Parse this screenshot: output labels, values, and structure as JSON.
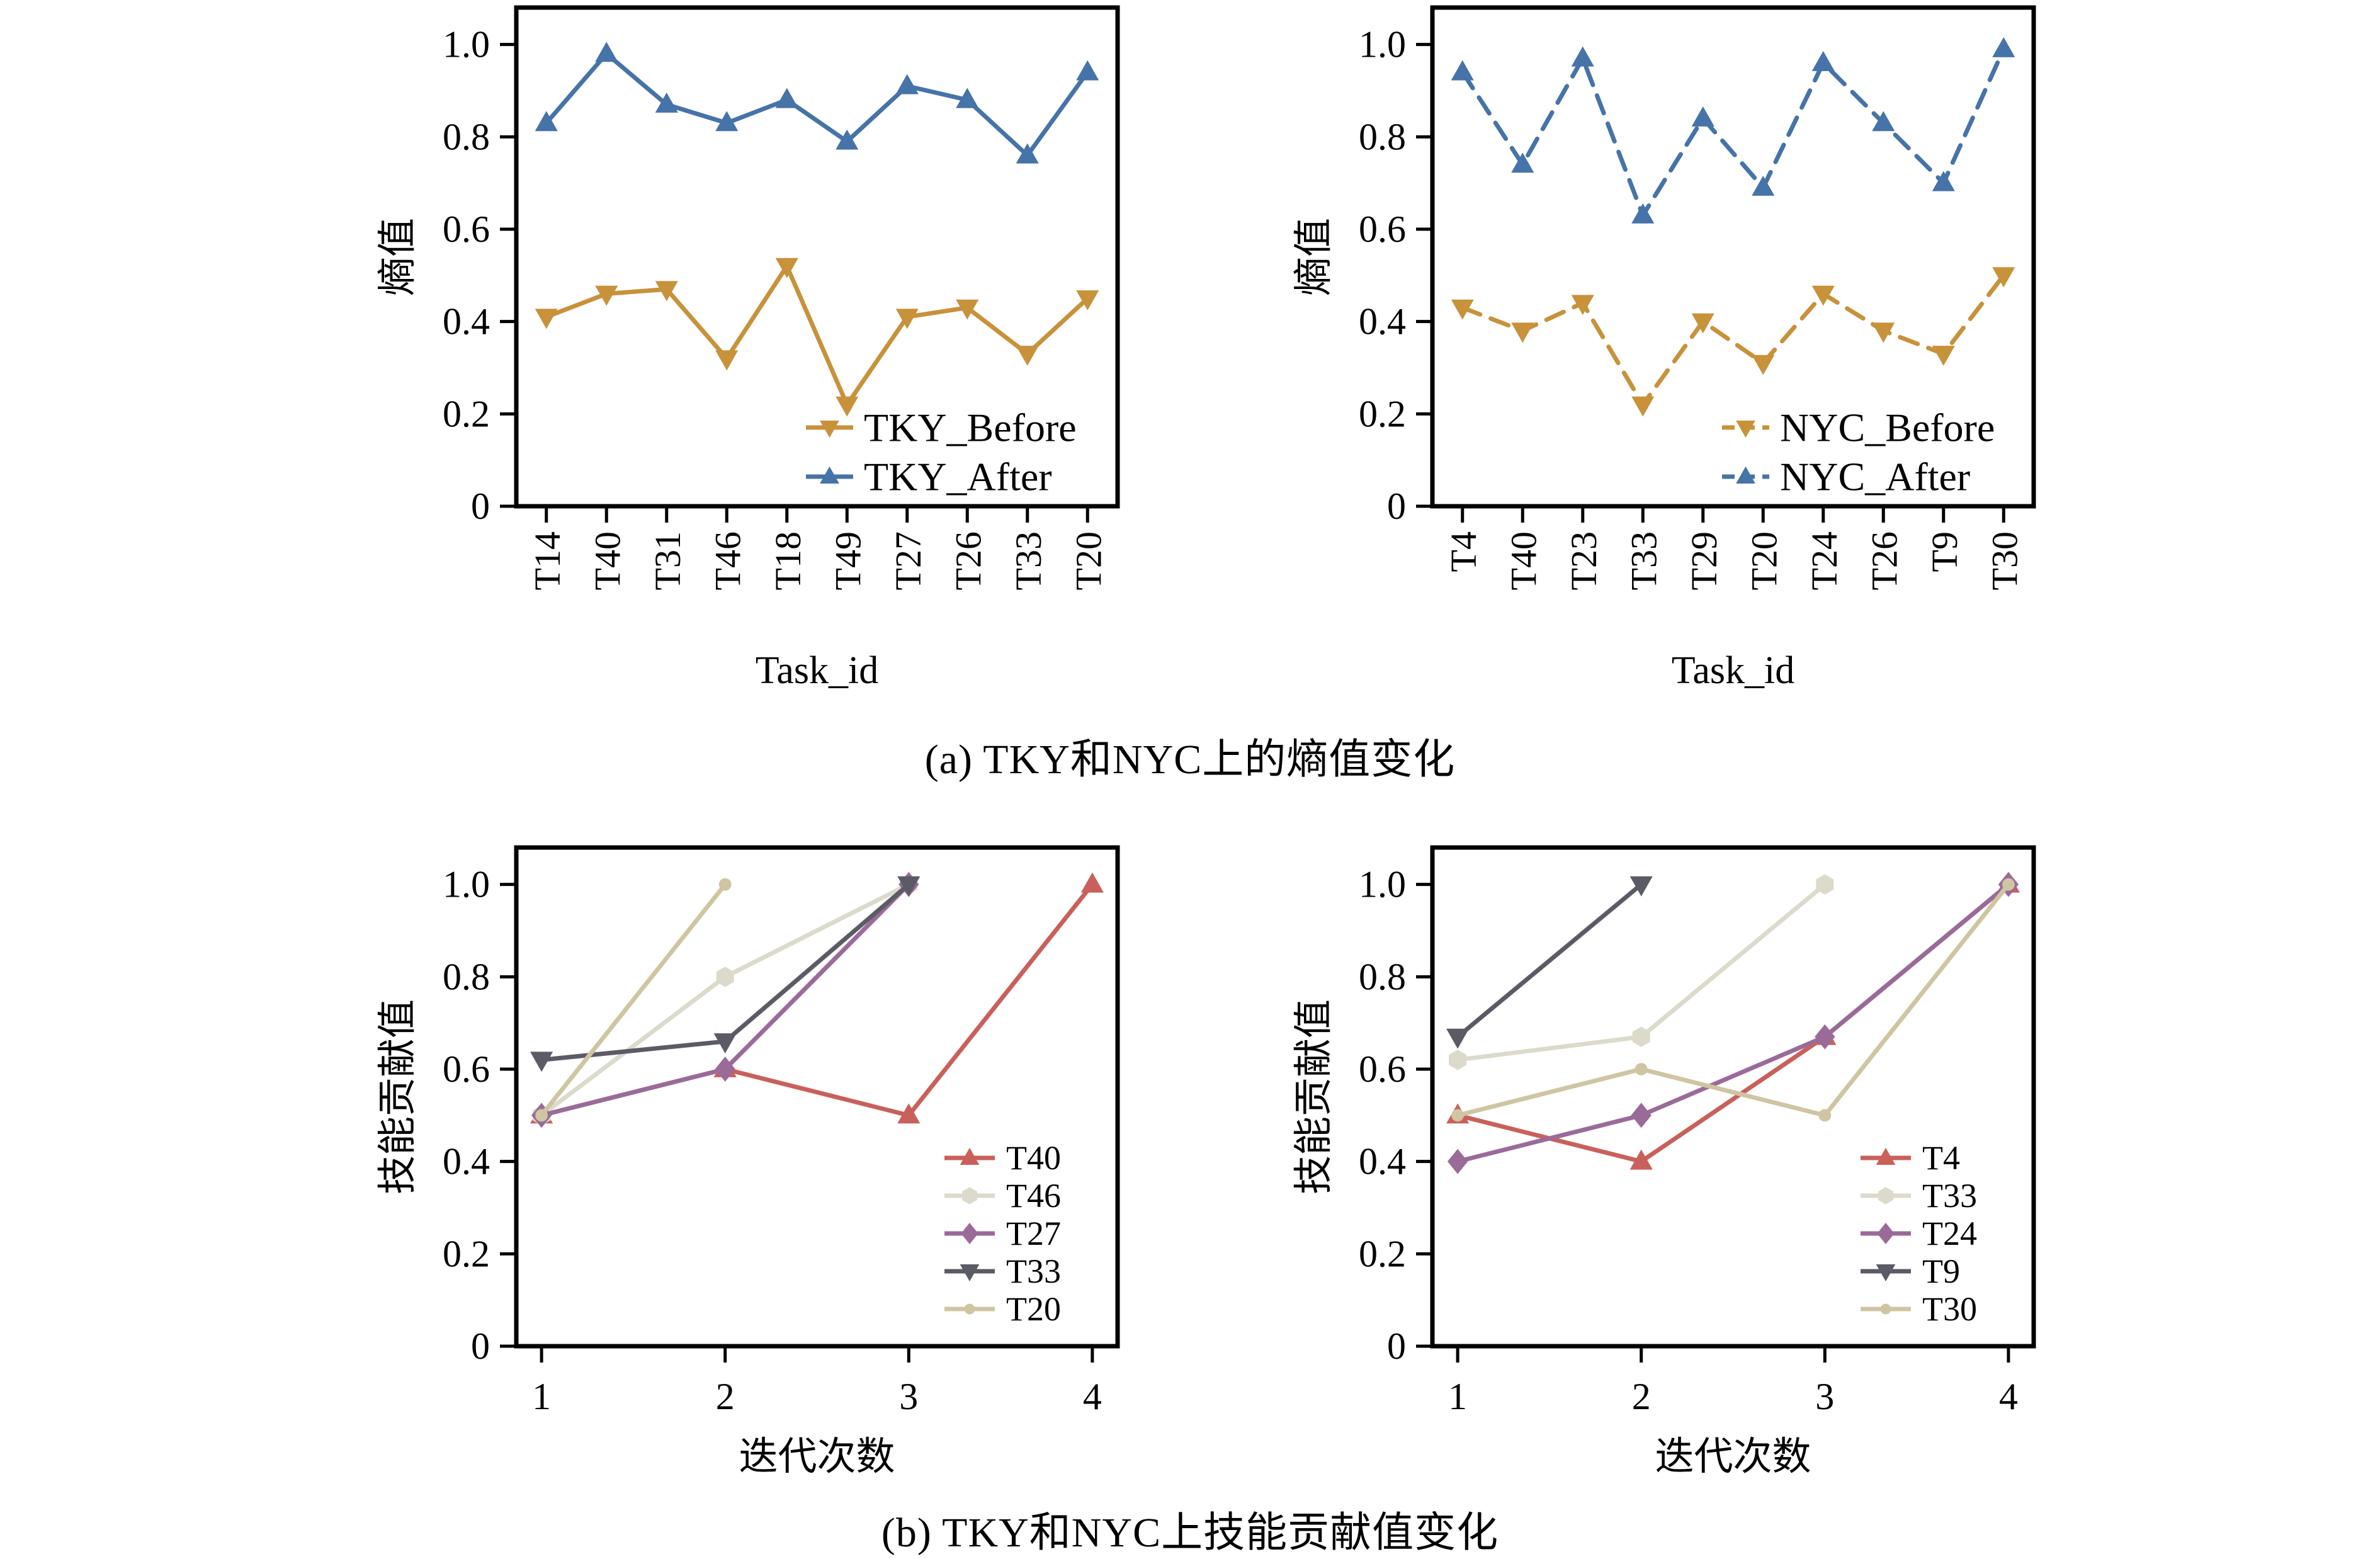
{
  "figure": {
    "caption_a": "(a) TKY和NYC上的熵值变化",
    "caption_b": "(b) TKY和NYC上技能贡献值变化"
  },
  "colors": {
    "gold": "#c8923b",
    "blue": "#4673a8",
    "red": "#c9605b",
    "beige": "#dcdacb",
    "purple": "#9a6b98",
    "slate": "#5b5b66",
    "khaki": "#cfc5a2",
    "axis": "#000000"
  },
  "chart_data": [
    {
      "id": "entropy-tky",
      "type": "line",
      "x_type": "category",
      "title": "",
      "xlabel": "Task_id",
      "ylabel": "熵值",
      "categories": [
        "T14",
        "T40",
        "T31",
        "T46",
        "T18",
        "T49",
        "T27",
        "T26",
        "T33",
        "T20"
      ],
      "ylim": [
        0,
        1.08
      ],
      "yticks": [
        0,
        0.2,
        0.4,
        0.6,
        0.8,
        1.0
      ],
      "ytick_labels": [
        "0",
        "0.2",
        "0.4",
        "0.6",
        "0.8",
        "1.0"
      ],
      "grid": false,
      "legend_position": "lower-right",
      "series": [
        {
          "name": "TKY_Before",
          "color": "gold",
          "marker": "triangle-down",
          "line": "solid",
          "values": [
            0.41,
            0.46,
            0.47,
            0.32,
            0.52,
            0.22,
            0.41,
            0.43,
            0.33,
            0.45
          ]
        },
        {
          "name": "TKY_After",
          "color": "blue",
          "marker": "triangle-up",
          "line": "solid",
          "values": [
            0.83,
            0.98,
            0.87,
            0.83,
            0.88,
            0.79,
            0.91,
            0.88,
            0.76,
            0.94
          ]
        }
      ]
    },
    {
      "id": "entropy-nyc",
      "type": "line",
      "x_type": "category",
      "title": "",
      "xlabel": "Task_id",
      "ylabel": "熵值",
      "categories": [
        "T4",
        "T40",
        "T23",
        "T33",
        "T29",
        "T20",
        "T24",
        "T26",
        "T9",
        "T30"
      ],
      "ylim": [
        0,
        1.08
      ],
      "yticks": [
        0,
        0.2,
        0.4,
        0.6,
        0.8,
        1.0
      ],
      "ytick_labels": [
        "0",
        "0.2",
        "0.4",
        "0.6",
        "0.8",
        "1.0"
      ],
      "grid": false,
      "legend_position": "lower-right",
      "series": [
        {
          "name": "NYC_Before",
          "color": "gold",
          "marker": "triangle-down",
          "line": "dashed",
          "values": [
            0.43,
            0.38,
            0.44,
            0.22,
            0.4,
            0.31,
            0.46,
            0.38,
            0.33,
            0.5
          ]
        },
        {
          "name": "NYC_After",
          "color": "blue",
          "marker": "triangle-up",
          "line": "dashed",
          "values": [
            0.94,
            0.74,
            0.97,
            0.63,
            0.84,
            0.69,
            0.96,
            0.83,
            0.7,
            0.99
          ]
        }
      ]
    },
    {
      "id": "skill-tky",
      "type": "line",
      "x_type": "numeric",
      "title": "",
      "xlabel": "迭代次数",
      "ylabel": "技能贡献值",
      "xticks": [
        1,
        2,
        3,
        4
      ],
      "xtick_labels": [
        "1",
        "2",
        "3",
        "4"
      ],
      "xlim": [
        1,
        4
      ],
      "ylim": [
        0,
        1.08
      ],
      "yticks": [
        0,
        0.2,
        0.4,
        0.6,
        0.8,
        1.0
      ],
      "ytick_labels": [
        "0",
        "0.2",
        "0.4",
        "0.6",
        "0.8",
        "1.0"
      ],
      "grid": false,
      "legend_position": "lower-right",
      "series": [
        {
          "name": "T40",
          "color": "red",
          "marker": "triangle-up",
          "line": "solid",
          "x": [
            1,
            2,
            3,
            4
          ],
          "values": [
            0.5,
            0.6,
            0.5,
            1.0
          ]
        },
        {
          "name": "T46",
          "color": "beige",
          "marker": "hexagon",
          "line": "solid",
          "x": [
            1,
            2,
            3
          ],
          "values": [
            0.5,
            0.8,
            1.0
          ]
        },
        {
          "name": "T27",
          "color": "purple",
          "marker": "diamond",
          "line": "solid",
          "x": [
            1,
            2,
            3
          ],
          "values": [
            0.5,
            0.6,
            1.0
          ]
        },
        {
          "name": "T33",
          "color": "slate",
          "marker": "triangle-down",
          "line": "solid",
          "x": [
            1,
            2,
            3
          ],
          "values": [
            0.62,
            0.66,
            1.0
          ]
        },
        {
          "name": "T20",
          "color": "khaki",
          "marker": "circle",
          "line": "solid",
          "x": [
            1,
            2
          ],
          "values": [
            0.5,
            1.0
          ]
        }
      ]
    },
    {
      "id": "skill-nyc",
      "type": "line",
      "x_type": "numeric",
      "title": "",
      "xlabel": "迭代次数",
      "ylabel": "技能贡献值",
      "xticks": [
        1,
        2,
        3,
        4
      ],
      "xtick_labels": [
        "1",
        "2",
        "3",
        "4"
      ],
      "xlim": [
        1,
        4
      ],
      "ylim": [
        0,
        1.08
      ],
      "yticks": [
        0,
        0.2,
        0.4,
        0.6,
        0.8,
        1.0
      ],
      "ytick_labels": [
        "0",
        "0.2",
        "0.4",
        "0.6",
        "0.8",
        "1.0"
      ],
      "grid": false,
      "legend_position": "lower-right",
      "series": [
        {
          "name": "T4",
          "color": "red",
          "marker": "triangle-up",
          "line": "solid",
          "x": [
            1,
            2,
            3,
            4
          ],
          "values": [
            0.5,
            0.4,
            0.67,
            1.0
          ]
        },
        {
          "name": "T33",
          "color": "beige",
          "marker": "hexagon",
          "line": "solid",
          "x": [
            1,
            2,
            3
          ],
          "values": [
            0.62,
            0.67,
            1.0
          ]
        },
        {
          "name": "T24",
          "color": "purple",
          "marker": "diamond",
          "line": "solid",
          "x": [
            1,
            2,
            3,
            4
          ],
          "values": [
            0.4,
            0.5,
            0.67,
            1.0
          ]
        },
        {
          "name": "T9",
          "color": "slate",
          "marker": "triangle-down",
          "line": "solid",
          "x": [
            1,
            2
          ],
          "values": [
            0.67,
            1.0
          ]
        },
        {
          "name": "T30",
          "color": "khaki",
          "marker": "circle",
          "line": "solid",
          "x": [
            1,
            2,
            3,
            4
          ],
          "values": [
            0.5,
            0.6,
            0.5,
            1.0
          ]
        }
      ]
    }
  ]
}
